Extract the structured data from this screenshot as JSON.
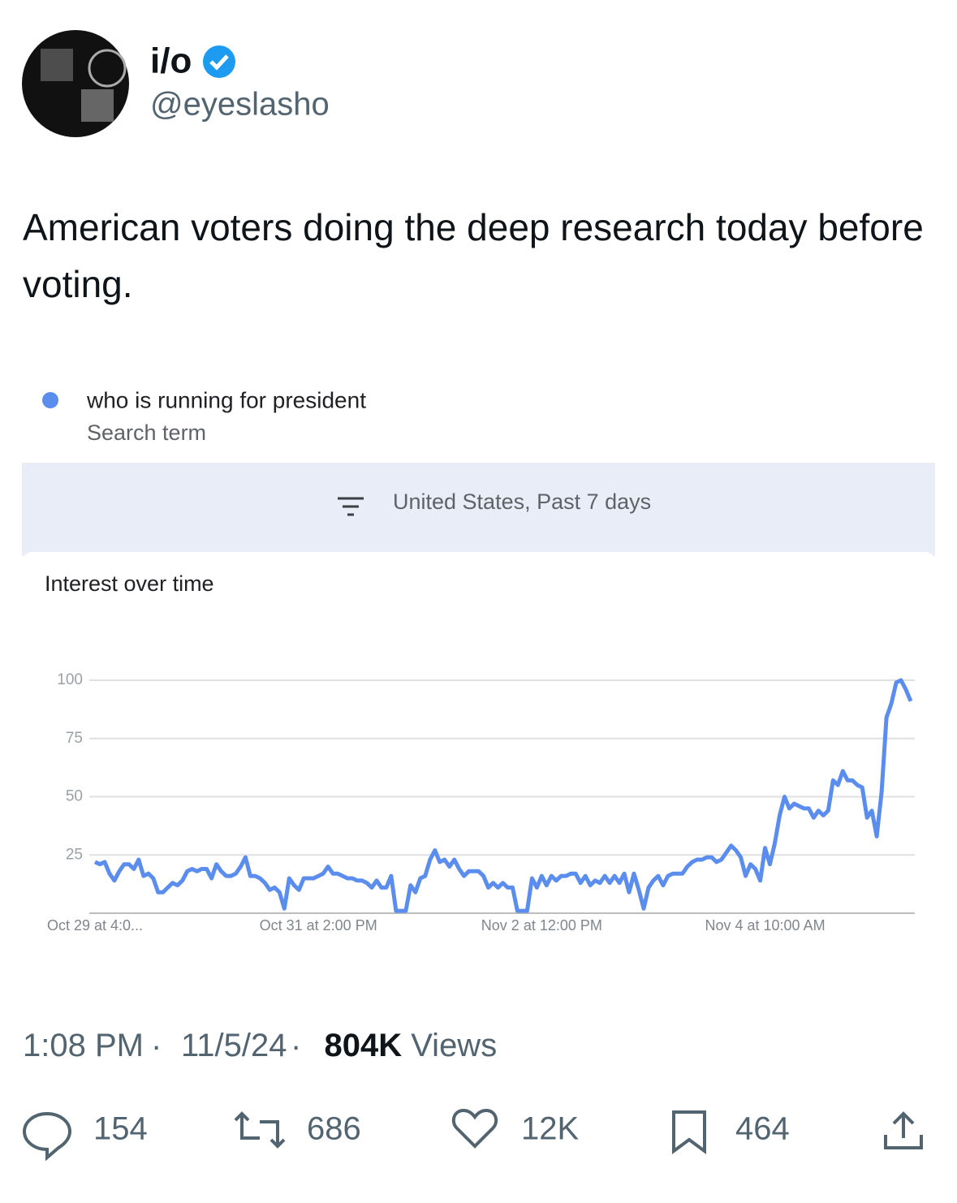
{
  "tweet": {
    "name": "i/o",
    "handle": "@eyeslasho",
    "text": "American voters doing the deep research today before voting.",
    "time": "1:08 PM",
    "date": "11/5/24",
    "views": "804K",
    "views_label": "Views",
    "stats": {
      "replies": "154",
      "reposts": "686",
      "likes": "12K",
      "bookmarks": "464"
    }
  },
  "chart_data": {
    "type": "line",
    "title": "Interest over time",
    "subtitle": "United States, Past 7 days",
    "series_label": "Search term",
    "categories": [
      "Oct 29 at 4:0...",
      null,
      null,
      null,
      null,
      null,
      null,
      null,
      null,
      null,
      null,
      null,
      null,
      null,
      null,
      null,
      null,
      null,
      null,
      null,
      null,
      null,
      null,
      null,
      null,
      null,
      null,
      null,
      null,
      null,
      null,
      null,
      null,
      null,
      null,
      null,
      null,
      null,
      null,
      null,
      null,
      null,
      null,
      null,
      null,
      null,
      "Oct 31 at 2:00 PM",
      null,
      null,
      null,
      null,
      null,
      null,
      null,
      null,
      null,
      null,
      null,
      null,
      null,
      null,
      null,
      null,
      null,
      null,
      null,
      null,
      null,
      null,
      null,
      null,
      null,
      null,
      null,
      null,
      null,
      null,
      null,
      null,
      null,
      null,
      null,
      null,
      null,
      null,
      null,
      null,
      null,
      null,
      null,
      null,
      null,
      "Nov 2 at 12:00 PM",
      null,
      null,
      null,
      null,
      null,
      null,
      null,
      null,
      null,
      null,
      null,
      null,
      null,
      null,
      null,
      null,
      null,
      null,
      null,
      null,
      null,
      null,
      null,
      null,
      null,
      null,
      null,
      null,
      null,
      null,
      null,
      null,
      null,
      null,
      null,
      null,
      null,
      null,
      null,
      null,
      null,
      null,
      null,
      null,
      null,
      "Nov 4 at 10:00 AM",
      null,
      null,
      null,
      null,
      null,
      null,
      null,
      null,
      null,
      null,
      null,
      null,
      null,
      null,
      null,
      null,
      null,
      null,
      null,
      null,
      null,
      null,
      null,
      null,
      null,
      null,
      null,
      null,
      null,
      null
    ],
    "series": [
      {
        "name": "who is running for president",
        "color": "#5b8def",
        "values": [
          22,
          21,
          22,
          17,
          14,
          18,
          21,
          21,
          19,
          23,
          16,
          17,
          15,
          9,
          9,
          11,
          13,
          12,
          14,
          18,
          19,
          18,
          19,
          19,
          15,
          21,
          18,
          16,
          16,
          17,
          20,
          24,
          16,
          16,
          15,
          13,
          10,
          11,
          9,
          2,
          15,
          12,
          10,
          15,
          15,
          15,
          16,
          17,
          20,
          17,
          17,
          16,
          15,
          15,
          14,
          14,
          13,
          11,
          14,
          11,
          11,
          16,
          1,
          1,
          1,
          12,
          9,
          15,
          16,
          23,
          27,
          22,
          23,
          20,
          23,
          19,
          16,
          18,
          18,
          18,
          16,
          11,
          13,
          11,
          13,
          11,
          11,
          1,
          1,
          1,
          15,
          11,
          16,
          12,
          16,
          14,
          16,
          16,
          17,
          17,
          13,
          16,
          12,
          14,
          13,
          16,
          13,
          16,
          13,
          17,
          9,
          17,
          10,
          2,
          11,
          14,
          16,
          12,
          16,
          17,
          17,
          17,
          20,
          22,
          23,
          23,
          24,
          24,
          22,
          23,
          26,
          29,
          27,
          24,
          16,
          21,
          19,
          14,
          28,
          21,
          30,
          42,
          50,
          45,
          47,
          46,
          45,
          45,
          41,
          44,
          42,
          44,
          57,
          55,
          61,
          57,
          57,
          55,
          54,
          41,
          44,
          33,
          52,
          84,
          90,
          99,
          100,
          96,
          91
        ]
      }
    ],
    "ylim": [
      0,
      100
    ],
    "yticks": [
      25,
      50,
      75,
      100
    ],
    "grid": true
  }
}
